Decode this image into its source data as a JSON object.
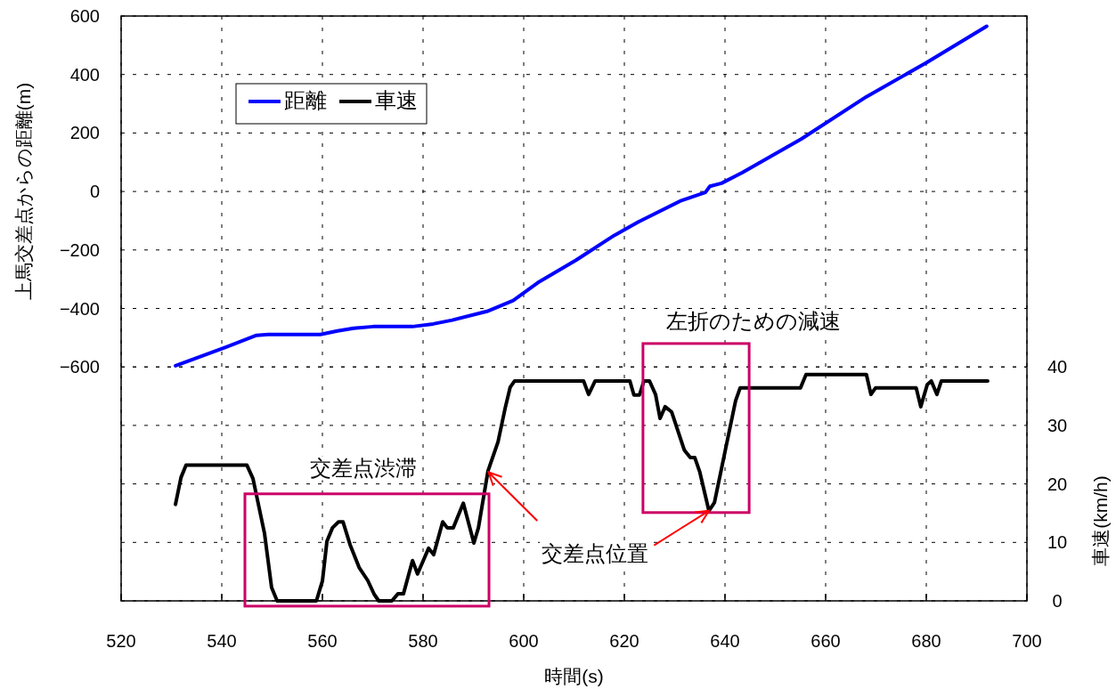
{
  "chart_data": {
    "type": "line",
    "xlabel": "時間(s)",
    "ylabel": "上馬交差点からの距離(m)",
    "y2label": "車速(km/h)",
    "xlim": [
      520,
      700
    ],
    "xticks": [
      520,
      540,
      560,
      580,
      600,
      620,
      640,
      660,
      680,
      700
    ],
    "ylim": [
      -1400,
      600
    ],
    "yticks": [
      -600,
      -400,
      -200,
      0,
      200,
      400,
      600
    ],
    "y2lim": [
      0,
      100
    ],
    "y2ticks": [
      0,
      10,
      20,
      30,
      40
    ],
    "grid": true,
    "legend": "top left",
    "marker": "none",
    "line_style": "solid",
    "series": [
      {
        "name": "距離",
        "color": "#0000ff",
        "x": [
          530.8,
          540.4,
          546.9,
          549.2,
          559.6,
          563,
          566.2,
          570.1,
          577.9,
          582,
          585.8,
          592.7,
          597.9,
          602.8,
          610.4,
          618,
          622.8,
          631.3,
          636.1,
          637,
          639.3,
          643.4,
          655.2,
          668.1,
          680,
          692
        ],
        "values": [
          -596,
          -535,
          -492,
          -489,
          -489,
          -477,
          -468,
          -462,
          -462,
          -453,
          -440,
          -410,
          -373,
          -312,
          -235,
          -150,
          -104,
          -31,
          -3,
          18,
          28,
          64,
          180,
          324,
          440,
          565
        ]
      },
      {
        "name": "車速",
        "color": "#000000",
        "axis": "y2",
        "x": [
          530.8,
          531.9,
          532.9,
          545,
          546.2,
          548.5,
          549.9,
          551,
          558.8,
          560,
          560.9,
          562,
          563.2,
          564.1,
          565.5,
          567.3,
          569,
          570.3,
          571.2,
          573.8,
          575,
          576.1,
          577.9,
          578.9,
          581.1,
          582.1,
          583.9,
          584.8,
          586,
          588,
          590.1,
          591,
          592.9,
          594.9,
          596.3,
          597.3,
          598.2,
          611.9,
          612.9,
          614.2,
          621.1,
          621.9,
          623,
          623.9,
          625,
          626.2,
          627.1,
          628.1,
          629.4,
          631.9,
          633.1,
          634,
          635,
          636.8,
          637.9,
          640.7,
          642.1,
          643,
          655,
          656.1,
          668.1,
          669,
          669.9,
          678,
          678.9,
          680.2,
          681,
          682.1,
          683,
          692.2
        ],
        "values": [
          16.5,
          21.1,
          23.2,
          23.2,
          20.9,
          11.5,
          2.3,
          0,
          0,
          3.4,
          10.2,
          12.5,
          13.5,
          13.5,
          9.6,
          5.7,
          3.5,
          1.1,
          0,
          0,
          1.2,
          1.2,
          6.9,
          4.6,
          9,
          7.9,
          13.5,
          12.5,
          12.5,
          16.7,
          9.9,
          12.5,
          22.2,
          27.2,
          32.9,
          36.5,
          37.6,
          37.6,
          35.3,
          37.6,
          37.6,
          35.2,
          35.2,
          37.6,
          37.6,
          35.3,
          31.2,
          33.2,
          32.3,
          25.8,
          24.5,
          24.5,
          22,
          15.4,
          16.8,
          28.4,
          34.2,
          36.4,
          36.4,
          38.7,
          38.7,
          35.3,
          36.4,
          36.4,
          33.2,
          37,
          37.6,
          35.3,
          37.6,
          37.6
        ]
      }
    ],
    "annotations": [
      "交差点渋滞",
      "左折のための減速",
      {
        "text": "交差点位置",
        "x": 593,
        "y": -960
      }
    ]
  }
}
